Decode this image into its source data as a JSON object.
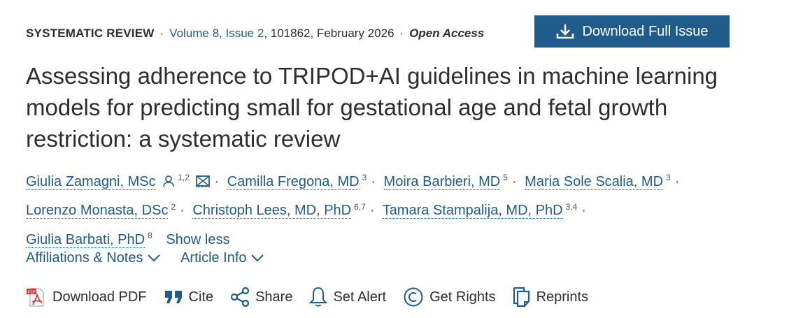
{
  "meta": {
    "type": "SYSTEMATIC REVIEW",
    "volume": "Volume 8, Issue 2",
    "rest": ", 101862, February 2026",
    "access": "Open Access"
  },
  "download_issue": "Download Full Issue",
  "title": "Assessing adherence to TRIPOD+AI guidelines in machine learning models for predicting small for gestational age and fetal growth restriction: a systematic review",
  "authors": [
    {
      "name": "Giulia Zamagni, MSc",
      "sup": "1,2"
    },
    {
      "name": "Camilla Fregona, MD",
      "sup": "3"
    },
    {
      "name": "Moira Barbieri, MD",
      "sup": "5"
    },
    {
      "name": "Maria Sole Scalia, MD",
      "sup": "3"
    },
    {
      "name": "Lorenzo Monasta, DSc",
      "sup": "2"
    },
    {
      "name": "Christoph Lees, MD, PhD",
      "sup": "6,7"
    },
    {
      "name": "Tamara Stampalija, MD, PhD",
      "sup": "3,4"
    },
    {
      "name": "Giulia Barbati, PhD",
      "sup": "8"
    }
  ],
  "separator": "·",
  "show_less": "Show less",
  "info": {
    "affiliations": "Affiliations & Notes",
    "article_info": "Article Info"
  },
  "tools": {
    "pdf": "Download PDF",
    "cite": "Cite",
    "share": "Share",
    "alert": "Set Alert",
    "rights": "Get Rights",
    "reprints": "Reprints"
  },
  "colors": {
    "accent": "#1f5c8c",
    "pdf_red": "#d32f2f"
  }
}
